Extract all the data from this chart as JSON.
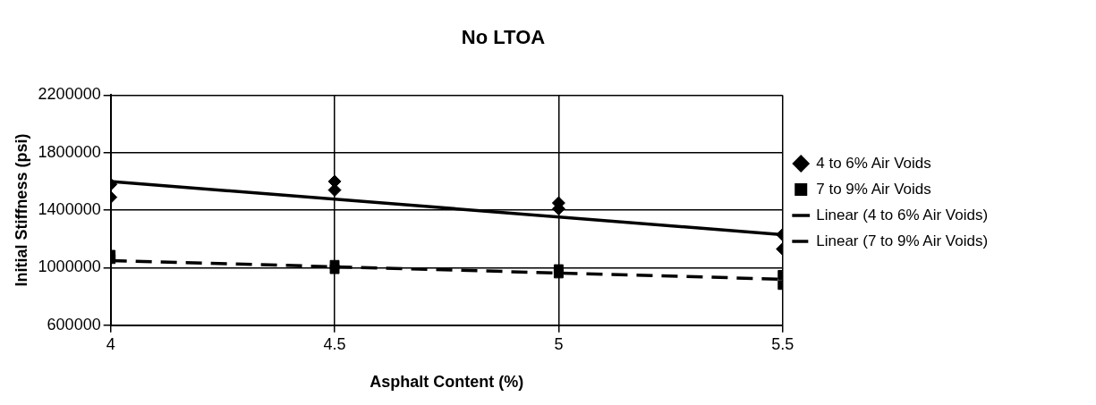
{
  "chart_data": {
    "type": "scatter",
    "title": "No LTOA",
    "xlabel": "Asphalt Content (%)",
    "ylabel": "Initial Stiffness (psi)",
    "xlim": [
      4,
      5.5
    ],
    "xticks": [
      4,
      4.5,
      5,
      5.5
    ],
    "ylim": [
      600000,
      2200000
    ],
    "yticks": [
      600000,
      1000000,
      1400000,
      1800000,
      2200000
    ],
    "grid": true,
    "legend": "right",
    "series": [
      {
        "name": "4 to 6% Air Voids",
        "marker": "diamond",
        "color": "#000000",
        "x": [
          4,
          4,
          4.5,
          4.5,
          5,
          5,
          5.5,
          5.5
        ],
        "values": [
          1580000,
          1490000,
          1600000,
          1540000,
          1450000,
          1410000,
          1230000,
          1130000
        ]
      },
      {
        "name": "7 to 9% Air Voids",
        "marker": "square",
        "color": "#000000",
        "x": [
          4,
          4,
          4.5,
          4.5,
          5,
          5,
          5.5,
          5.5
        ],
        "values": [
          1090000,
          1060000,
          1020000,
          990000,
          990000,
          960000,
          950000,
          880000
        ]
      },
      {
        "name": "Linear (4 to 6% Air Voids)",
        "type": "line",
        "marker": "none",
        "line_style": "solid",
        "color": "#000000",
        "x": [
          4,
          5.5
        ],
        "values": [
          1600000,
          1230000
        ]
      },
      {
        "name": "Linear (7 to 9% Air Voids)",
        "type": "line",
        "marker": "none",
        "line_style": "dashed",
        "color": "#000000",
        "x": [
          4,
          5.5
        ],
        "values": [
          1050000,
          920000
        ]
      }
    ]
  }
}
